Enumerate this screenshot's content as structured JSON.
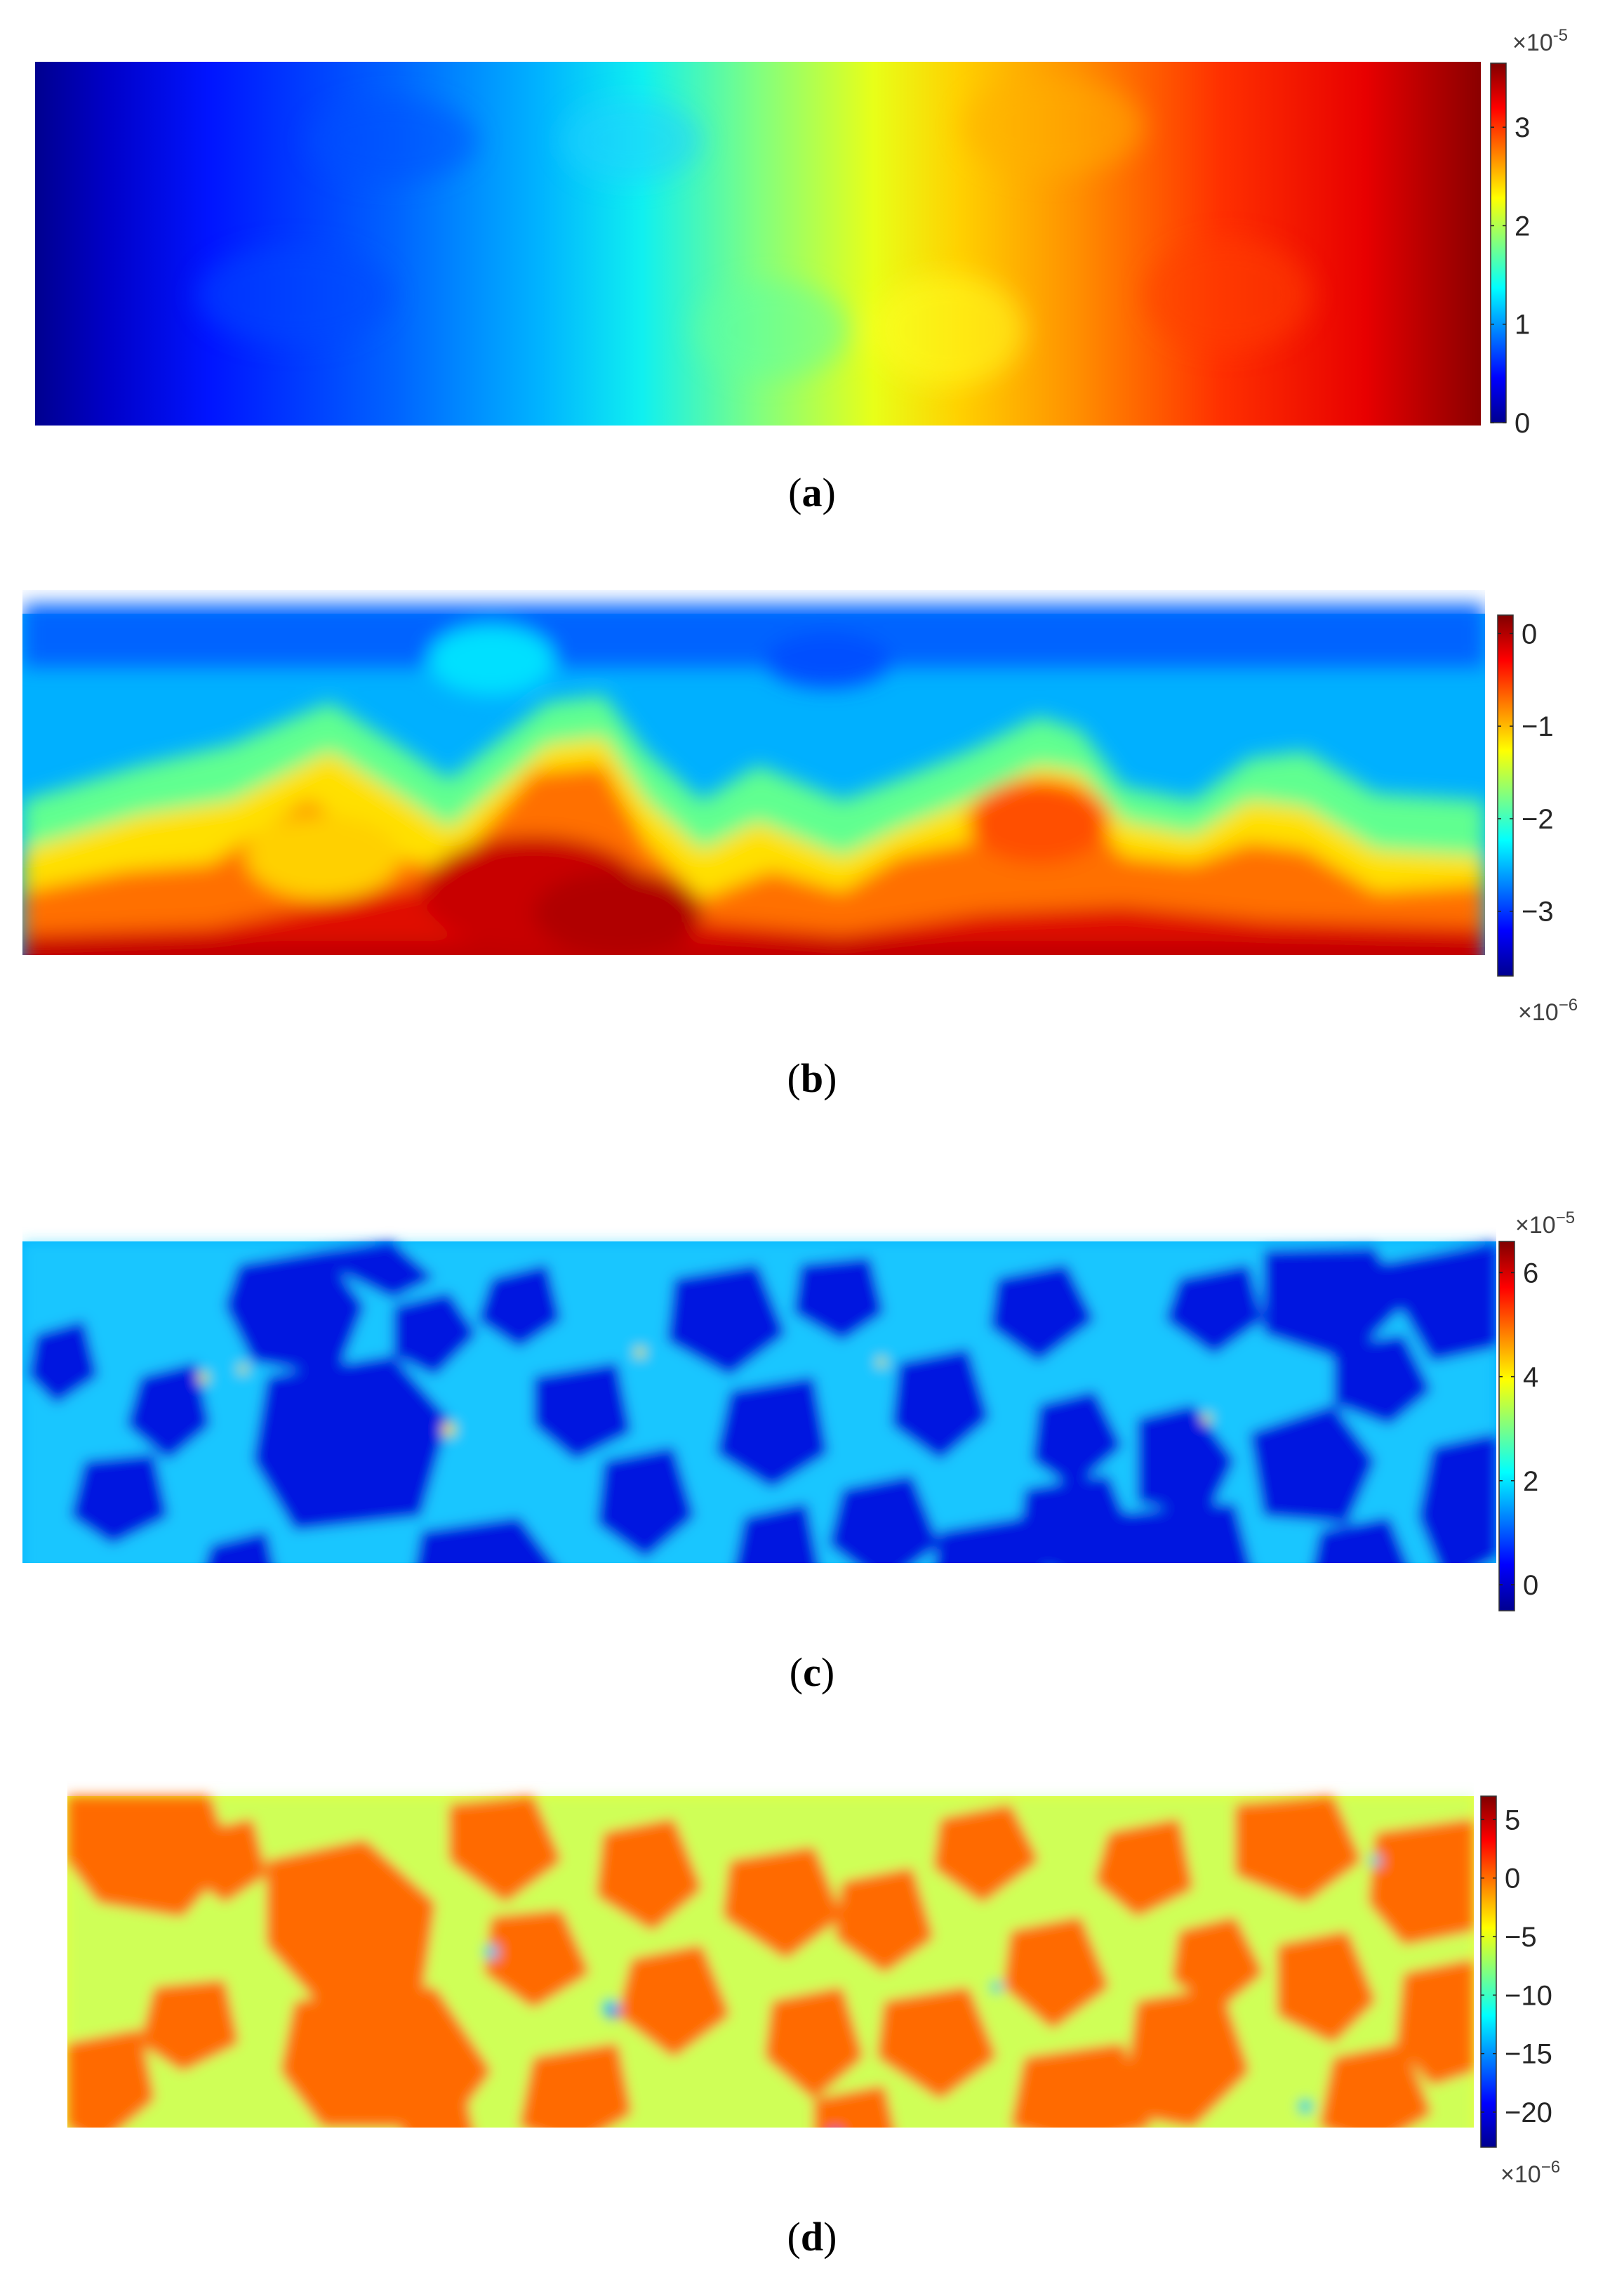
{
  "chart_data": [
    {
      "type": "heatmap",
      "panel": "a",
      "caption_letter": "a",
      "colormap": "jet",
      "colorbar": {
        "min": 0,
        "max": 3.65,
        "ticks": [
          {
            "value": 0,
            "label": "0"
          },
          {
            "value": 1,
            "label": "1"
          },
          {
            "value": 2,
            "label": "2"
          },
          {
            "value": 3,
            "label": "3"
          }
        ],
        "exponent_base": "×10",
        "exponent": "-5",
        "exponent_position": "top"
      },
      "field": "smooth left-to-right gradient"
    },
    {
      "type": "heatmap",
      "panel": "b",
      "caption_letter": "b",
      "colormap": "jet",
      "colorbar": {
        "min": -3.7,
        "max": 0.2,
        "ticks": [
          {
            "value": 0,
            "label": "0"
          },
          {
            "value": -1,
            "label": "−1"
          },
          {
            "value": -2,
            "label": "−2"
          },
          {
            "value": -3,
            "label": "−3"
          }
        ],
        "exponent_base": "×10",
        "exponent": "−6",
        "exponent_position": "bottom"
      },
      "field": "negative at top, near zero at bottom with wavy boundary"
    },
    {
      "type": "heatmap",
      "panel": "c",
      "caption_letter": "c",
      "colormap": "jet",
      "colorbar": {
        "min": -0.5,
        "max": 6.6,
        "ticks": [
          {
            "value": 0,
            "label": "0"
          },
          {
            "value": 2,
            "label": "2"
          },
          {
            "value": 4,
            "label": "4"
          },
          {
            "value": 6,
            "label": "6"
          }
        ],
        "exponent_base": "×10",
        "exponent": "−5",
        "exponent_position": "top"
      },
      "field": "low-valued aggregate particles in higher-valued matrix"
    },
    {
      "type": "heatmap",
      "panel": "d",
      "caption_letter": "d",
      "colormap": "jet",
      "colorbar": {
        "min": -23,
        "max": 7,
        "ticks": [
          {
            "value": 5,
            "label": "5"
          },
          {
            "value": 0,
            "label": "0"
          },
          {
            "value": -5,
            "label": "−5"
          },
          {
            "value": -10,
            "label": "−10"
          },
          {
            "value": -15,
            "label": "−15"
          },
          {
            "value": -20,
            "label": "−20"
          }
        ],
        "exponent_base": "×10",
        "exponent": "−6",
        "exponent_position": "bottom"
      },
      "field": "orange aggregate particles in yellow/cyan matrix"
    }
  ]
}
